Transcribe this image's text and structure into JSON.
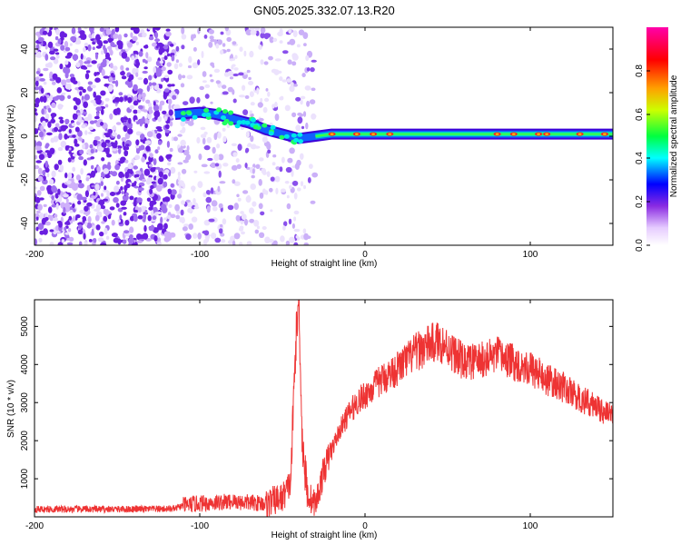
{
  "title": "GN05.2025.332.07.13.R20",
  "chart_data": [
    {
      "type": "heatmap",
      "xlabel": "Height of straight line (km)",
      "ylabel": "Frequency (Hz)",
      "xlim": [
        -200,
        150
      ],
      "ylim": [
        -50,
        50
      ],
      "x_ticks": [
        -200,
        -100,
        0,
        100
      ],
      "x_tick_labels": [
        "-200",
        "-100",
        "0",
        "100"
      ],
      "y_ticks": [
        -40,
        -20,
        0,
        20,
        40
      ],
      "y_tick_labels": [
        "-40",
        "-20",
        "0",
        "20",
        "40"
      ],
      "colorbar": {
        "label": "Normalized spectral amplitude",
        "range": [
          0,
          1
        ],
        "ticks": [
          0,
          0.2,
          0.4,
          0.6,
          0.8
        ],
        "tick_labels": [
          "0.0",
          "0.2",
          "0.4",
          "0.6",
          "0.8"
        ],
        "colors": [
          "#ffffff",
          "#d9b8ff",
          "#7a00ff",
          "#0000ff",
          "#00ffff",
          "#00ff00",
          "#ffff00",
          "#ff8000",
          "#ff0000",
          "#ff00aa"
        ]
      },
      "features": {
        "noise_region_x": [
          -200,
          -60
        ],
        "dense_noise_x": [
          -200,
          -115
        ],
        "signal_trace": [
          {
            "x": -115,
            "y": 10
          },
          {
            "x": -100,
            "y": 11
          },
          {
            "x": -90,
            "y": 10
          },
          {
            "x": -80,
            "y": 8
          },
          {
            "x": -70,
            "y": 6
          },
          {
            "x": -60,
            "y": 3
          },
          {
            "x": -50,
            "y": 1
          },
          {
            "x": -40,
            "y": -1
          },
          {
            "x": -30,
            "y": 0
          },
          {
            "x": -20,
            "y": 1
          },
          {
            "x": 0,
            "y": 1
          },
          {
            "x": 50,
            "y": 1
          },
          {
            "x": 100,
            "y": 1
          },
          {
            "x": 150,
            "y": 1
          }
        ],
        "hot_spots": [
          {
            "x": -20,
            "y": 1
          },
          {
            "x": -5,
            "y": 1
          },
          {
            "x": 5,
            "y": 1
          },
          {
            "x": 15,
            "y": 1
          },
          {
            "x": 80,
            "y": 1
          },
          {
            "x": 90,
            "y": 1
          },
          {
            "x": 105,
            "y": 1
          },
          {
            "x": 110,
            "y": 1
          },
          {
            "x": 130,
            "y": 1
          },
          {
            "x": 145,
            "y": 1
          }
        ]
      }
    },
    {
      "type": "line",
      "xlabel": "Height of straight line (km)",
      "ylabel": "SNR (10 * v/v)",
      "xlim": [
        -200,
        150
      ],
      "ylim": [
        0,
        5700
      ],
      "x_ticks": [
        -200,
        -100,
        0,
        100
      ],
      "x_tick_labels": [
        "-200",
        "-100",
        "0",
        "100"
      ],
      "y_ticks": [
        1000,
        2000,
        3000,
        4000,
        5000
      ],
      "y_tick_labels": [
        "1000",
        "2000",
        "3000",
        "4000",
        "5000"
      ],
      "series": [
        {
          "name": "SNR",
          "color": "#ee3333",
          "x": [
            -200,
            -150,
            -115,
            -110,
            -100,
            -80,
            -60,
            -50,
            -45,
            -42,
            -40,
            -38,
            -35,
            -30,
            -25,
            -20,
            -15,
            -10,
            -5,
            0,
            10,
            20,
            30,
            40,
            45,
            50,
            60,
            70,
            80,
            90,
            100,
            110,
            120,
            130,
            140,
            150
          ],
          "y": [
            200,
            200,
            210,
            300,
            350,
            400,
            350,
            500,
            900,
            4500,
            5700,
            2000,
            600,
            300,
            1200,
            1800,
            2300,
            2700,
            3000,
            3200,
            3600,
            3900,
            4300,
            4550,
            4600,
            4450,
            4050,
            4100,
            4250,
            4050,
            3900,
            3600,
            3400,
            3100,
            2900,
            2600
          ]
        }
      ]
    }
  ]
}
